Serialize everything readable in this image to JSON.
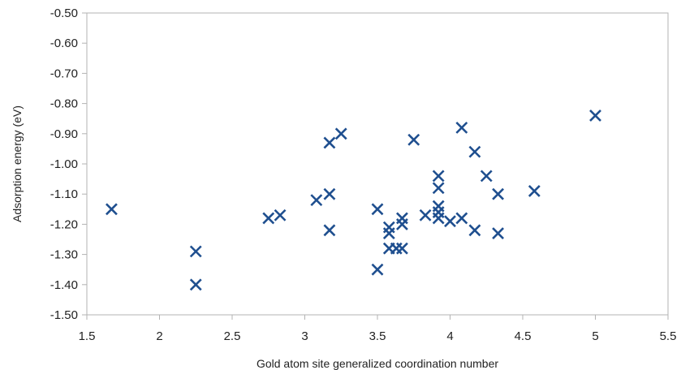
{
  "chart_data": {
    "type": "scatter",
    "xlabel": "Gold atom site generalized coordination number",
    "ylabel": "Adsorption energy (eV)",
    "xlim": [
      1.5,
      5.5
    ],
    "ylim": [
      -1.5,
      -0.5
    ],
    "xticks": [
      "1.5",
      "2",
      "2.5",
      "3",
      "3.5",
      "4",
      "4.5",
      "5",
      "5.5"
    ],
    "yticks": [
      "-0.50",
      "-0.60",
      "-0.70",
      "-0.80",
      "-0.90",
      "-1.00",
      "-1.10",
      "-1.20",
      "-1.30",
      "-1.40",
      "-1.50"
    ],
    "grid": "none",
    "marker": "x",
    "marker_color": "#1f4f8f",
    "series": [
      {
        "points": [
          [
            1.67,
            -1.15
          ],
          [
            2.25,
            -1.29
          ],
          [
            2.25,
            -1.4
          ],
          [
            2.75,
            -1.18
          ],
          [
            2.83,
            -1.17
          ],
          [
            3.08,
            -1.12
          ],
          [
            3.17,
            -0.93
          ],
          [
            3.17,
            -1.1
          ],
          [
            3.17,
            -1.22
          ],
          [
            3.25,
            -0.9
          ],
          [
            3.5,
            -1.15
          ],
          [
            3.5,
            -1.35
          ],
          [
            3.58,
            -1.21
          ],
          [
            3.58,
            -1.23
          ],
          [
            3.58,
            -1.28
          ],
          [
            3.63,
            -1.28
          ],
          [
            3.67,
            -1.18
          ],
          [
            3.67,
            -1.2
          ],
          [
            3.67,
            -1.28
          ],
          [
            3.75,
            -0.92
          ],
          [
            3.83,
            -1.17
          ],
          [
            3.92,
            -1.04
          ],
          [
            3.92,
            -1.08
          ],
          [
            3.92,
            -1.14
          ],
          [
            3.92,
            -1.16
          ],
          [
            3.92,
            -1.18
          ],
          [
            4.0,
            -1.19
          ],
          [
            4.08,
            -0.88
          ],
          [
            4.08,
            -1.18
          ],
          [
            4.17,
            -0.96
          ],
          [
            4.17,
            -1.22
          ],
          [
            4.25,
            -1.04
          ],
          [
            4.33,
            -1.1
          ],
          [
            4.33,
            -1.23
          ],
          [
            4.58,
            -1.09
          ],
          [
            5.0,
            -0.84
          ]
        ]
      }
    ]
  }
}
